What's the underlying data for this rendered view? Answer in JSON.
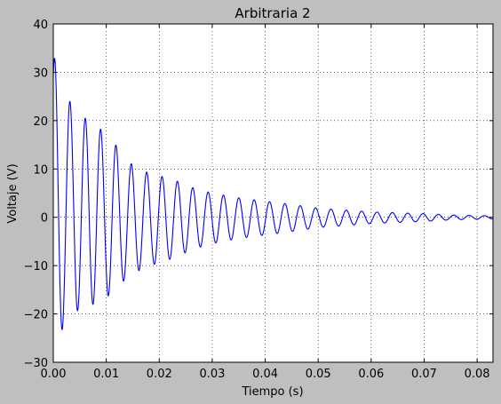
{
  "chart_data": {
    "type": "line",
    "title": "Arbitraria 2",
    "xlabel": "Tiempo (s)",
    "ylabel": "Voltaje (V)",
    "xlim": [
      0.0,
      0.083
    ],
    "ylim": [
      -30,
      40
    ],
    "xticks": [
      0.0,
      0.01,
      0.02,
      0.03,
      0.04,
      0.05,
      0.06,
      0.07,
      0.08
    ],
    "xtick_labels": [
      "0.00",
      "0.01",
      "0.02",
      "0.03",
      "0.04",
      "0.05",
      "0.06",
      "0.07",
      "0.08"
    ],
    "yticks": [
      -30,
      -20,
      -10,
      0,
      10,
      20,
      30,
      40
    ],
    "ytick_labels": [
      "−30",
      "−20",
      "−10",
      "0",
      "10",
      "20",
      "30",
      "40"
    ],
    "grid": true,
    "line_color": "#0000ff",
    "series": [
      {
        "oscillation_frequency_hz": 345,
        "envelope_points": [
          [
            0.0006,
            30.0
          ],
          [
            0.002,
            24.0
          ],
          [
            0.005,
            20.0
          ],
          [
            0.008,
            18.5
          ],
          [
            0.011,
            16.0
          ],
          [
            0.014,
            12.0
          ],
          [
            0.017,
            10.0
          ],
          [
            0.02,
            9.0
          ],
          [
            0.023,
            8.0
          ],
          [
            0.026,
            6.5
          ],
          [
            0.029,
            5.5
          ],
          [
            0.032,
            4.8
          ],
          [
            0.035,
            4.2
          ],
          [
            0.04,
            3.5
          ],
          [
            0.045,
            2.8
          ],
          [
            0.05,
            2.0
          ],
          [
            0.055,
            1.6
          ],
          [
            0.06,
            1.2
          ],
          [
            0.07,
            0.8
          ],
          [
            0.075,
            0.5
          ],
          [
            0.083,
            0.3
          ]
        ],
        "offset_points": [
          [
            0.0,
            3.0
          ],
          [
            0.003,
            1.5
          ],
          [
            0.015,
            -0.5
          ],
          [
            0.03,
            -0.2
          ],
          [
            0.083,
            0.0
          ]
        ]
      }
    ]
  }
}
